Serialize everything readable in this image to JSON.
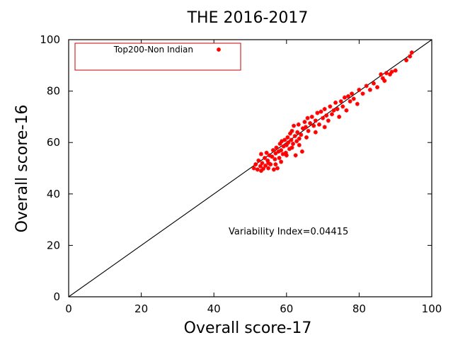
{
  "chart_data": {
    "type": "scatter",
    "title": "THE 2016-2017",
    "xlabel": "Overall score-17",
    "ylabel": "Overall score-16",
    "xlim": [
      0,
      100
    ],
    "ylim": [
      0,
      100
    ],
    "xticks": [
      "0",
      "20",
      "40",
      "60",
      "80",
      "100"
    ],
    "yticks": [
      "0",
      "20",
      "40",
      "60",
      "80",
      "100"
    ],
    "grid": false,
    "legend": "top-left",
    "annotation": "Variability Index=0.04415",
    "reference_line": {
      "x": [
        0,
        100
      ],
      "y": [
        0,
        100
      ]
    },
    "series": [
      {
        "name": "Top200-Non Indian",
        "color": "#ff0000",
        "marker": "star",
        "points": [
          [
            51.0,
            50.0
          ],
          [
            51.5,
            51.5
          ],
          [
            52.0,
            49.5
          ],
          [
            52.3,
            53.0
          ],
          [
            52.8,
            50.8
          ],
          [
            53.0,
            55.5
          ],
          [
            53.3,
            52.0
          ],
          [
            53.6,
            49.8
          ],
          [
            54.0,
            54.0
          ],
          [
            54.2,
            51.0
          ],
          [
            54.5,
            56.0
          ],
          [
            54.8,
            53.0
          ],
          [
            55.0,
            52.0
          ],
          [
            55.3,
            55.0
          ],
          [
            55.6,
            51.5
          ],
          [
            56.0,
            54.5
          ],
          [
            56.3,
            57.0
          ],
          [
            56.5,
            49.5
          ],
          [
            56.8,
            53.5
          ],
          [
            57.0,
            55.8
          ],
          [
            57.2,
            58.0
          ],
          [
            57.5,
            50.0
          ],
          [
            57.8,
            56.5
          ],
          [
            58.0,
            54.0
          ],
          [
            58.2,
            59.5
          ],
          [
            58.5,
            57.0
          ],
          [
            58.7,
            60.5
          ],
          [
            59.0,
            55.5
          ],
          [
            59.2,
            58.5
          ],
          [
            59.5,
            61.0
          ],
          [
            59.8,
            56.0
          ],
          [
            60.0,
            59.0
          ],
          [
            60.3,
            62.0
          ],
          [
            60.5,
            60.0
          ],
          [
            60.8,
            57.5
          ],
          [
            61.0,
            63.5
          ],
          [
            61.3,
            61.0
          ],
          [
            61.5,
            64.5
          ],
          [
            61.8,
            59.5
          ],
          [
            62.0,
            66.5
          ],
          [
            62.3,
            62.5
          ],
          [
            62.5,
            55.0
          ],
          [
            62.8,
            60.5
          ],
          [
            63.0,
            64.0
          ],
          [
            63.3,
            67.0
          ],
          [
            63.5,
            61.5
          ],
          [
            64.0,
            63.0
          ],
          [
            64.3,
            56.5
          ],
          [
            64.5,
            65.5
          ],
          [
            65.0,
            68.0
          ],
          [
            65.3,
            66.0
          ],
          [
            65.8,
            69.5
          ],
          [
            66.0,
            64.5
          ],
          [
            66.5,
            67.5
          ],
          [
            67.0,
            70.0
          ],
          [
            67.5,
            66.5
          ],
          [
            68.0,
            68.5
          ],
          [
            68.5,
            71.5
          ],
          [
            69.0,
            67.0
          ],
          [
            69.5,
            72.0
          ],
          [
            70.0,
            69.5
          ],
          [
            70.5,
            73.0
          ],
          [
            71.0,
            70.5
          ],
          [
            71.5,
            68.5
          ],
          [
            72.0,
            74.0
          ],
          [
            72.5,
            71.0
          ],
          [
            73.0,
            72.5
          ],
          [
            73.5,
            75.5
          ],
          [
            74.0,
            73.0
          ],
          [
            74.5,
            70.0
          ],
          [
            75.0,
            76.0
          ],
          [
            75.5,
            74.0
          ],
          [
            76.0,
            77.5
          ],
          [
            76.5,
            72.5
          ],
          [
            77.0,
            78.0
          ],
          [
            77.5,
            76.0
          ],
          [
            78.0,
            79.0
          ],
          [
            78.5,
            77.0
          ],
          [
            79.5,
            75.0
          ],
          [
            80.0,
            80.5
          ],
          [
            81.0,
            79.0
          ],
          [
            82.0,
            82.0
          ],
          [
            83.0,
            80.5
          ],
          [
            84.0,
            83.0
          ],
          [
            85.0,
            81.5
          ],
          [
            86.0,
            86.5
          ],
          [
            86.5,
            85.0
          ],
          [
            87.0,
            84.0
          ],
          [
            87.5,
            87.0
          ],
          [
            88.5,
            86.5
          ],
          [
            89.0,
            87.5
          ],
          [
            90.0,
            88.0
          ],
          [
            93.0,
            92.0
          ],
          [
            94.0,
            93.5
          ],
          [
            94.5,
            95.0
          ],
          [
            53.0,
            49.0
          ],
          [
            55.0,
            50.0
          ],
          [
            57.0,
            51.5
          ],
          [
            58.5,
            52.5
          ],
          [
            60.0,
            55.0
          ],
          [
            61.5,
            58.0
          ],
          [
            63.5,
            59.0
          ],
          [
            65.5,
            62.0
          ],
          [
            68.0,
            64.0
          ],
          [
            70.5,
            66.0
          ]
        ]
      }
    ]
  }
}
